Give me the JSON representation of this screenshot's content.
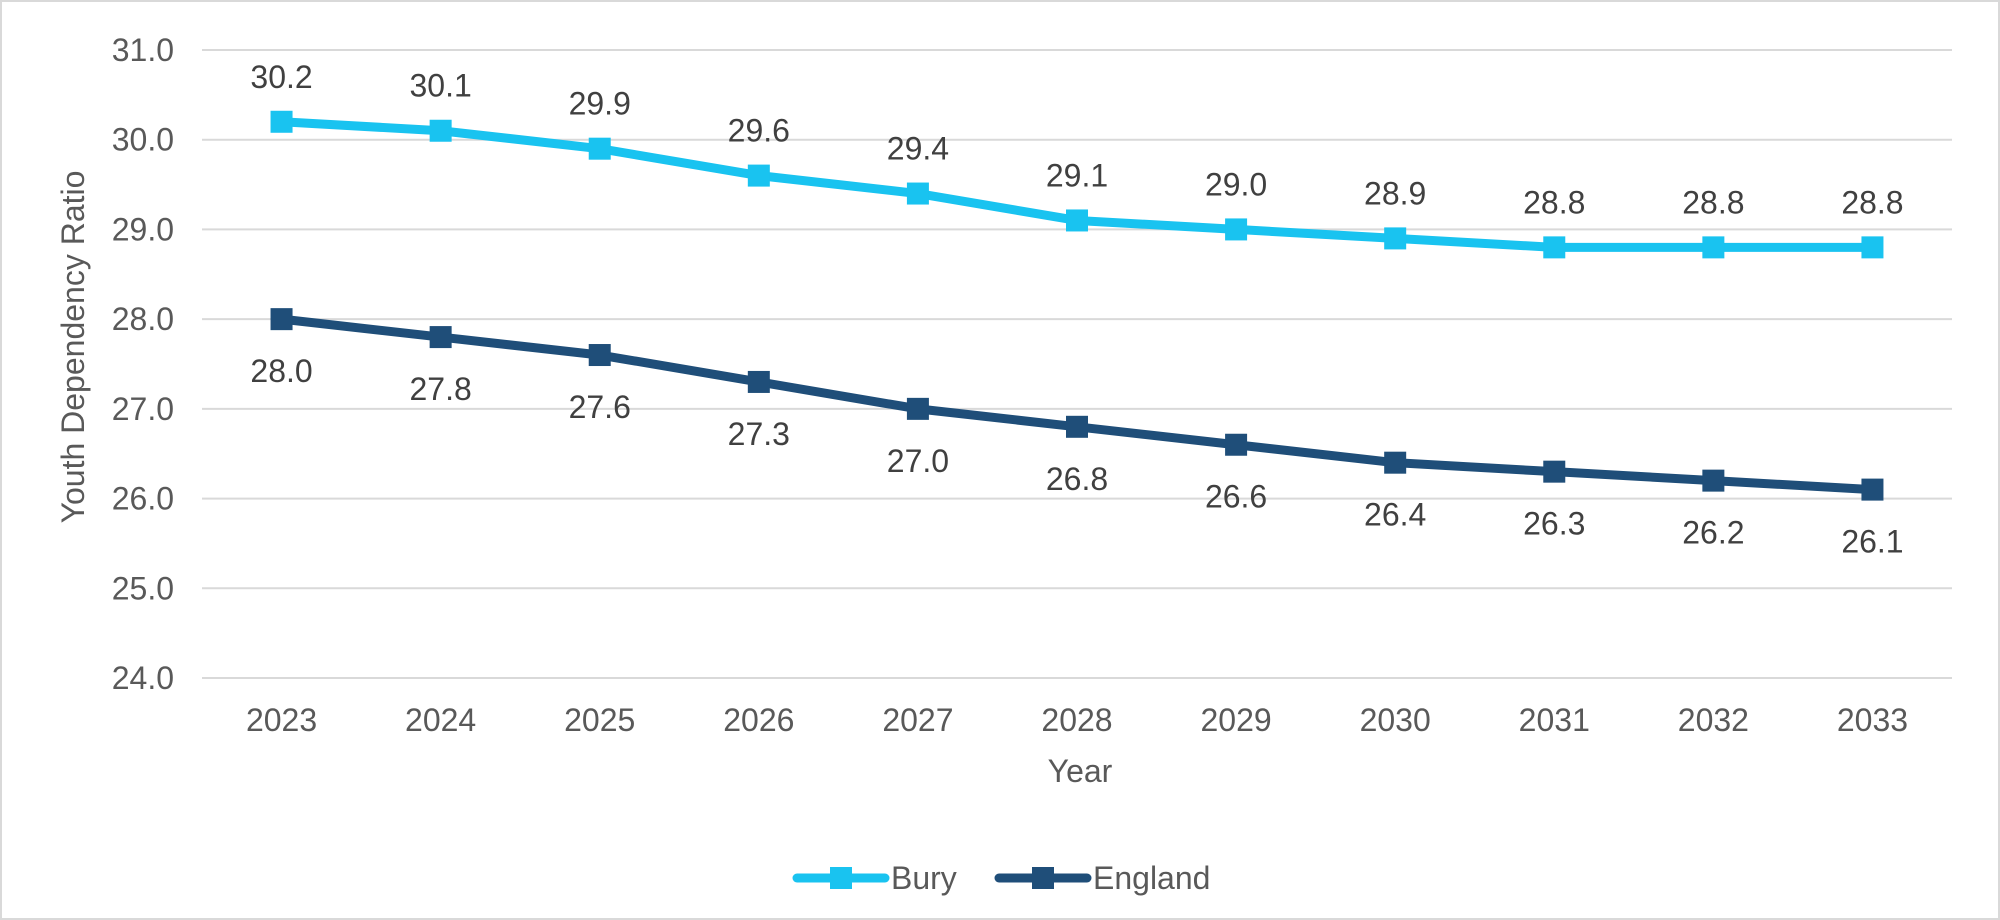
{
  "chart_data": {
    "type": "line",
    "title": "",
    "xlabel": "Year",
    "ylabel": "Youth Dependency Ratio",
    "ylim": [
      24.0,
      31.0
    ],
    "y_ticks": [
      "24.0",
      "25.0",
      "26.0",
      "27.0",
      "28.0",
      "29.0",
      "30.0",
      "31.0"
    ],
    "categories": [
      "2023",
      "2024",
      "2025",
      "2026",
      "2027",
      "2028",
      "2029",
      "2030",
      "2031",
      "2032",
      "2033"
    ],
    "grid": "horizontal",
    "legend_position": "bottom",
    "series": [
      {
        "name": "Bury",
        "color": "#19c3f0",
        "marker": "square",
        "label_position": "above",
        "values": [
          30.2,
          30.1,
          29.9,
          29.6,
          29.4,
          29.1,
          29.0,
          28.9,
          28.8,
          28.8,
          28.8
        ],
        "labels": [
          "30.2",
          "30.1",
          "29.9",
          "29.6",
          "29.4",
          "29.1",
          "29.0",
          "28.9",
          "28.8",
          "28.8",
          "28.8"
        ]
      },
      {
        "name": "England",
        "color": "#1f4e79",
        "marker": "square",
        "label_position": "below",
        "values": [
          28.0,
          27.8,
          27.6,
          27.3,
          27.0,
          26.8,
          26.6,
          26.4,
          26.3,
          26.2,
          26.1
        ],
        "labels": [
          "28.0",
          "27.8",
          "27.6",
          "27.3",
          "27.0",
          "26.8",
          "26.6",
          "26.4",
          "26.3",
          "26.2",
          "26.1"
        ]
      }
    ]
  }
}
